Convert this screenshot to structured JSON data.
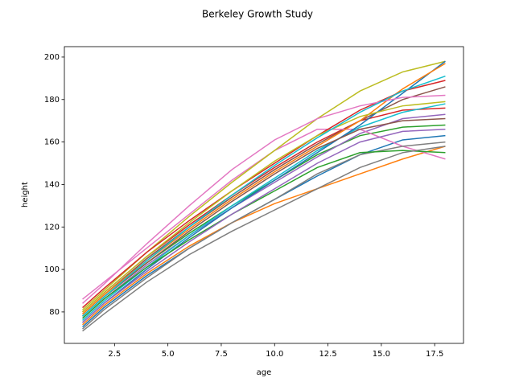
{
  "chart_data": {
    "type": "line",
    "title": "Berkeley Growth Study",
    "x_label": "age",
    "y_label": "height",
    "x": [
      1,
      2,
      4,
      6,
      8,
      10,
      12,
      14,
      16,
      18
    ],
    "series": [
      {
        "color": "#1f77b4",
        "values": [
          73,
          82,
          97,
          110,
          122,
          133,
          144,
          154,
          161,
          163
        ]
      },
      {
        "color": "#ff7f0e",
        "values": [
          74,
          83,
          98,
          111,
          122,
          131,
          138,
          145,
          152,
          158
        ]
      },
      {
        "color": "#2ca02c",
        "values": [
          78,
          87,
          103,
          117,
          130,
          142,
          154,
          163,
          167,
          168
        ]
      },
      {
        "color": "#d62728",
        "values": [
          80,
          89,
          106,
          121,
          135,
          148,
          160,
          170,
          175,
          176
        ]
      },
      {
        "color": "#9467bd",
        "values": [
          77,
          86,
          102,
          116,
          129,
          141,
          153,
          164,
          171,
          173
        ]
      },
      {
        "color": "#8c564b",
        "values": [
          79,
          88,
          105,
          120,
          134,
          147,
          159,
          170,
          180,
          186
        ]
      },
      {
        "color": "#e377c2",
        "values": [
          86,
          94,
          110,
          126,
          142,
          156,
          166,
          166,
          158,
          152
        ]
      },
      {
        "color": "#7f7f7f",
        "values": [
          72,
          81,
          96,
          110,
          122,
          133,
          145,
          154,
          158,
          160
        ]
      },
      {
        "color": "#bcbd22",
        "values": [
          81,
          90,
          108,
          125,
          141,
          156,
          171,
          184,
          193,
          198
        ]
      },
      {
        "color": "#17becf",
        "values": [
          76,
          85,
          101,
          116,
          130,
          143,
          156,
          167,
          174,
          178
        ]
      },
      {
        "color": "#1f77b4",
        "values": [
          75,
          84,
          100,
          115,
          129,
          142,
          155,
          168,
          183,
          198
        ]
      },
      {
        "color": "#ff7f0e",
        "values": [
          79,
          88,
          104,
          119,
          133,
          146,
          158,
          170,
          185,
          197
        ]
      },
      {
        "color": "#2ca02c",
        "values": [
          77,
          86,
          101,
          114,
          126,
          137,
          148,
          155,
          156,
          155
        ]
      },
      {
        "color": "#d62728",
        "values": [
          82,
          91,
          108,
          123,
          137,
          150,
          163,
          175,
          184,
          189
        ]
      },
      {
        "color": "#9467bd",
        "values": [
          75,
          84,
          99,
          113,
          126,
          138,
          150,
          160,
          165,
          166
        ]
      },
      {
        "color": "#8c564b",
        "values": [
          78,
          87,
          103,
          118,
          132,
          145,
          157,
          166,
          170,
          171
        ]
      },
      {
        "color": "#e377c2",
        "values": [
          84,
          93,
          112,
          130,
          147,
          161,
          171,
          177,
          181,
          182
        ]
      },
      {
        "color": "#7f7f7f",
        "values": [
          71,
          79,
          94,
          107,
          118,
          128,
          138,
          148,
          155,
          158
        ]
      },
      {
        "color": "#bcbd22",
        "values": [
          80,
          89,
          106,
          122,
          137,
          151,
          163,
          172,
          177,
          179
        ]
      },
      {
        "color": "#17becf",
        "values": [
          78,
          87,
          104,
          120,
          135,
          149,
          162,
          174,
          184,
          191
        ]
      }
    ],
    "xlim": [
      0.15,
      18.85
    ],
    "ylim": [
      65.2,
      204.9
    ],
    "xticks": [
      2.5,
      {
        "value": 5,
        "label": "5.0"
      },
      7.5,
      {
        "value": 10,
        "label": "10.0"
      },
      12.5,
      {
        "value": 15,
        "label": "15.0"
      },
      17.5
    ],
    "yticks": [
      80,
      100,
      120,
      140,
      160,
      180,
      200
    ]
  }
}
